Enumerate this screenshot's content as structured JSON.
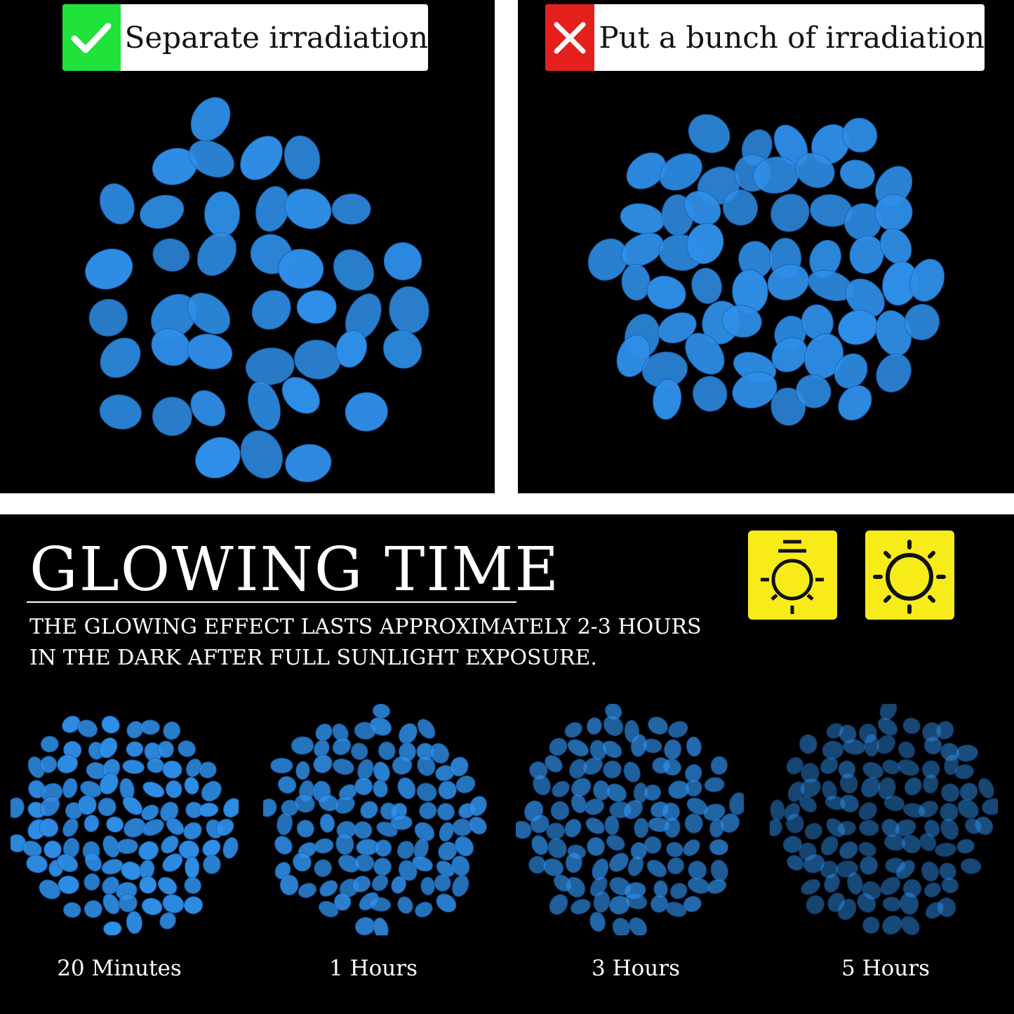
{
  "comparison": {
    "good": {
      "label": "Separate irradiation",
      "icon": "check-icon",
      "color": "#1fe23a"
    },
    "bad": {
      "label": "Put a bunch of irradiation",
      "icon": "close-icon",
      "color": "#e3201c"
    }
  },
  "glowing": {
    "title": "GLOWING TIME",
    "description_line1": "THE GLOWING EFFECT LASTS APPROXIMATELY 2-3 HOURS",
    "description_line2": "IN THE DARK AFTER FULL SUNLIGHT EXPOSURE.",
    "icons": [
      "sun-dim-icon",
      "sun-bright-icon"
    ],
    "stages": [
      {
        "label": "20 Minutes"
      },
      {
        "label": "1 Hours"
      },
      {
        "label": "3 Hours"
      },
      {
        "label": "5 Hours"
      }
    ]
  },
  "colors": {
    "pebble": "#2f8fe8",
    "icon_bg": "#f7ec1a",
    "background": "#000000"
  }
}
